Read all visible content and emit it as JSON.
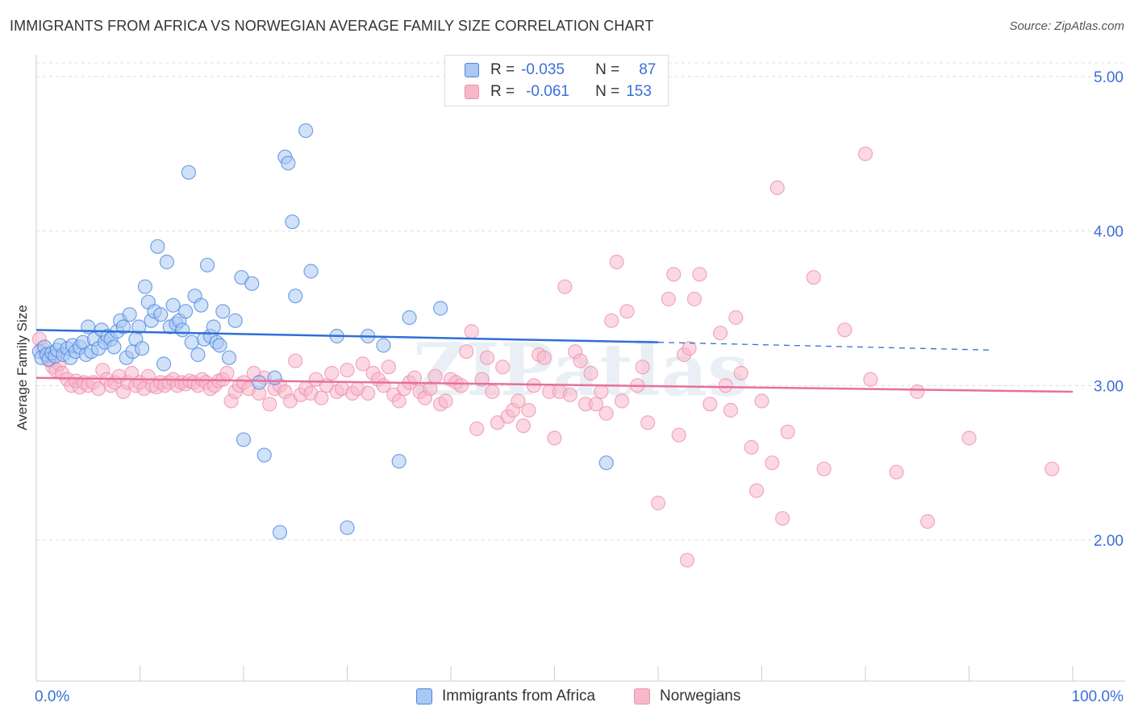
{
  "header": {
    "title": "IMMIGRANTS FROM AFRICA VS NORWEGIAN AVERAGE FAMILY SIZE CORRELATION CHART",
    "source": "Source: ZipAtlas.com"
  },
  "legend": {
    "rows": [
      {
        "r_label": "R =",
        "r_value": "-0.035",
        "n_label": "N =",
        "n_value": "87",
        "color": "#a9c8f3"
      },
      {
        "r_label": "R =",
        "r_value": "-0.061",
        "n_label": "N =",
        "n_value": "153",
        "color": "#f7b8ca"
      }
    ]
  },
  "bottom_legend": [
    {
      "label": "Immigrants from Africa",
      "color": "#a9c8f3"
    },
    {
      "label": "Norwegians",
      "color": "#f7b8ca"
    }
  ],
  "watermark": "ZIPatlas",
  "chart_data": {
    "type": "scatter",
    "ylabel": "Average Family Size",
    "xlabel": "",
    "x_tick_labels": [
      "0.0%",
      "100.0%"
    ],
    "y_tick_labels": [
      "2.00",
      "3.00",
      "4.00",
      "5.00"
    ],
    "xlim": [
      0,
      100
    ],
    "ylim": [
      1.0,
      5.1
    ],
    "grid": true,
    "colors": {
      "blue": "#4a86e0",
      "blue_fill": "#a9c8f3",
      "blue_line": "#2f6fd6",
      "pink": "#ee8fae",
      "pink_fill": "#f7b8ca",
      "pink_line": "#e8709a",
      "tick_label": "#3a6fd8"
    },
    "series": [
      {
        "name": "Immigrants from Africa",
        "trend": {
          "x0": 0,
          "y0": 3.36,
          "x1": 60,
          "y1": 3.28,
          "dash_x1": 92,
          "dash_y1": 3.23
        },
        "points": [
          [
            0.3,
            3.22
          ],
          [
            0.5,
            3.18
          ],
          [
            0.8,
            3.25
          ],
          [
            1.0,
            3.2
          ],
          [
            1.2,
            3.17
          ],
          [
            1.5,
            3.21
          ],
          [
            1.8,
            3.19
          ],
          [
            2.0,
            3.23
          ],
          [
            2.3,
            3.26
          ],
          [
            2.6,
            3.2
          ],
          [
            3.0,
            3.24
          ],
          [
            3.3,
            3.18
          ],
          [
            3.5,
            3.26
          ],
          [
            3.8,
            3.22
          ],
          [
            4.2,
            3.25
          ],
          [
            4.5,
            3.28
          ],
          [
            4.8,
            3.2
          ],
          [
            5.0,
            3.38
          ],
          [
            5.3,
            3.22
          ],
          [
            5.6,
            3.3
          ],
          [
            6.0,
            3.24
          ],
          [
            6.3,
            3.36
          ],
          [
            6.6,
            3.28
          ],
          [
            6.9,
            3.32
          ],
          [
            7.2,
            3.3
          ],
          [
            7.5,
            3.25
          ],
          [
            7.8,
            3.35
          ],
          [
            8.1,
            3.42
          ],
          [
            8.4,
            3.38
          ],
          [
            8.7,
            3.18
          ],
          [
            9.0,
            3.46
          ],
          [
            9.3,
            3.22
          ],
          [
            9.6,
            3.3
          ],
          [
            9.9,
            3.38
          ],
          [
            10.2,
            3.24
          ],
          [
            10.5,
            3.64
          ],
          [
            10.8,
            3.54
          ],
          [
            11.1,
            3.42
          ],
          [
            11.4,
            3.48
          ],
          [
            11.7,
            3.9
          ],
          [
            12.0,
            3.46
          ],
          [
            12.3,
            3.14
          ],
          [
            12.6,
            3.8
          ],
          [
            12.9,
            3.38
          ],
          [
            13.2,
            3.52
          ],
          [
            13.5,
            3.4
          ],
          [
            13.8,
            3.42
          ],
          [
            14.1,
            3.36
          ],
          [
            14.4,
            3.48
          ],
          [
            14.7,
            4.38
          ],
          [
            15.0,
            3.28
          ],
          [
            15.3,
            3.58
          ],
          [
            15.6,
            3.2
          ],
          [
            15.9,
            3.52
          ],
          [
            16.2,
            3.3
          ],
          [
            16.5,
            3.78
          ],
          [
            16.8,
            3.32
          ],
          [
            17.1,
            3.38
          ],
          [
            17.4,
            3.28
          ],
          [
            17.7,
            3.26
          ],
          [
            18.0,
            3.48
          ],
          [
            18.6,
            3.18
          ],
          [
            19.2,
            3.42
          ],
          [
            19.8,
            3.7
          ],
          [
            20.0,
            2.65
          ],
          [
            20.8,
            3.66
          ],
          [
            21.5,
            3.02
          ],
          [
            22.0,
            2.55
          ],
          [
            23.0,
            3.05
          ],
          [
            23.5,
            2.05
          ],
          [
            24.0,
            4.48
          ],
          [
            24.3,
            4.44
          ],
          [
            24.7,
            4.06
          ],
          [
            25.0,
            3.58
          ],
          [
            26.0,
            4.65
          ],
          [
            26.5,
            3.74
          ],
          [
            29.0,
            3.32
          ],
          [
            30.0,
            2.08
          ],
          [
            32.0,
            3.32
          ],
          [
            33.5,
            3.26
          ],
          [
            35.0,
            2.51
          ],
          [
            36.0,
            3.44
          ],
          [
            39.0,
            3.5
          ],
          [
            55.0,
            2.5
          ]
        ]
      },
      {
        "name": "Norwegians",
        "trend": {
          "x0": 0,
          "y0": 3.05,
          "x1": 100,
          "y1": 2.96
        },
        "points": [
          [
            0.3,
            3.3
          ],
          [
            0.6,
            3.24
          ],
          [
            1.0,
            3.2
          ],
          [
            1.3,
            3.16
          ],
          [
            1.6,
            3.12
          ],
          [
            1.9,
            3.1
          ],
          [
            2.2,
            3.14
          ],
          [
            2.5,
            3.08
          ],
          [
            3.0,
            3.04
          ],
          [
            3.4,
            3.0
          ],
          [
            3.8,
            3.03
          ],
          [
            4.2,
            2.99
          ],
          [
            4.6,
            3.02
          ],
          [
            5.0,
            3.0
          ],
          [
            5.5,
            3.02
          ],
          [
            6.0,
            2.98
          ],
          [
            6.4,
            3.1
          ],
          [
            6.8,
            3.04
          ],
          [
            7.2,
            3.0
          ],
          [
            7.6,
            3.02
          ],
          [
            8.0,
            3.06
          ],
          [
            8.4,
            2.96
          ],
          [
            8.8,
            3.02
          ],
          [
            9.2,
            3.08
          ],
          [
            9.6,
            3.0
          ],
          [
            10.0,
            3.02
          ],
          [
            10.4,
            2.98
          ],
          [
            10.8,
            3.06
          ],
          [
            11.2,
            3.0
          ],
          [
            11.6,
            2.99
          ],
          [
            12.0,
            3.02
          ],
          [
            12.4,
            3.0
          ],
          [
            12.8,
            3.02
          ],
          [
            13.2,
            3.04
          ],
          [
            13.6,
            3.0
          ],
          [
            14.0,
            3.02
          ],
          [
            14.4,
            3.01
          ],
          [
            14.8,
            3.03
          ],
          [
            15.2,
            3.02
          ],
          [
            15.6,
            3.0
          ],
          [
            16.0,
            3.04
          ],
          [
            16.4,
            3.02
          ],
          [
            16.8,
            2.98
          ],
          [
            17.2,
            3.0
          ],
          [
            17.6,
            3.03
          ],
          [
            18.0,
            3.04
          ],
          [
            18.4,
            3.08
          ],
          [
            18.8,
            2.9
          ],
          [
            19.2,
            2.96
          ],
          [
            19.6,
            3.0
          ],
          [
            20.0,
            3.02
          ],
          [
            20.5,
            2.98
          ],
          [
            21.0,
            3.08
          ],
          [
            21.5,
            2.95
          ],
          [
            22.0,
            3.05
          ],
          [
            22.5,
            2.88
          ],
          [
            23.0,
            2.98
          ],
          [
            23.5,
            3.0
          ],
          [
            24.0,
            2.96
          ],
          [
            24.5,
            2.9
          ],
          [
            25.0,
            3.16
          ],
          [
            25.5,
            2.94
          ],
          [
            26.0,
            2.98
          ],
          [
            26.5,
            2.95
          ],
          [
            27.0,
            3.04
          ],
          [
            27.5,
            2.92
          ],
          [
            28.0,
            3.0
          ],
          [
            28.5,
            3.08
          ],
          [
            29.0,
            2.96
          ],
          [
            29.5,
            2.98
          ],
          [
            30.0,
            3.1
          ],
          [
            30.5,
            2.95
          ],
          [
            31.0,
            2.98
          ],
          [
            31.5,
            3.14
          ],
          [
            32.0,
            2.95
          ],
          [
            32.5,
            3.08
          ],
          [
            33.0,
            3.04
          ],
          [
            33.5,
            3.0
          ],
          [
            34.0,
            3.12
          ],
          [
            34.5,
            2.94
          ],
          [
            35.0,
            2.9
          ],
          [
            35.5,
            2.98
          ],
          [
            36.0,
            3.02
          ],
          [
            36.5,
            3.05
          ],
          [
            37.0,
            2.96
          ],
          [
            37.5,
            2.92
          ],
          [
            38.0,
            2.98
          ],
          [
            38.5,
            3.06
          ],
          [
            39.0,
            2.88
          ],
          [
            39.5,
            2.9
          ],
          [
            40.0,
            3.04
          ],
          [
            40.5,
            3.02
          ],
          [
            41.0,
            3.0
          ],
          [
            41.5,
            3.22
          ],
          [
            42.0,
            3.35
          ],
          [
            42.5,
            2.72
          ],
          [
            43.0,
            3.04
          ],
          [
            43.5,
            3.18
          ],
          [
            44.0,
            2.96
          ],
          [
            44.5,
            2.76
          ],
          [
            45.0,
            3.12
          ],
          [
            45.5,
            2.8
          ],
          [
            46.0,
            2.84
          ],
          [
            46.5,
            2.9
          ],
          [
            47.0,
            2.74
          ],
          [
            47.5,
            2.84
          ],
          [
            48.0,
            3.0
          ],
          [
            48.5,
            3.2
          ],
          [
            49.0,
            3.18
          ],
          [
            49.5,
            2.96
          ],
          [
            50.0,
            2.66
          ],
          [
            50.5,
            2.96
          ],
          [
            51.0,
            3.64
          ],
          [
            51.5,
            2.94
          ],
          [
            52.0,
            3.22
          ],
          [
            52.5,
            3.16
          ],
          [
            53.0,
            2.88
          ],
          [
            53.5,
            3.08
          ],
          [
            54.0,
            2.88
          ],
          [
            54.5,
            2.96
          ],
          [
            55.0,
            2.82
          ],
          [
            55.5,
            3.42
          ],
          [
            56.0,
            3.8
          ],
          [
            56.5,
            2.9
          ],
          [
            57.0,
            3.48
          ],
          [
            58.0,
            3.0
          ],
          [
            58.5,
            3.12
          ],
          [
            59.0,
            2.76
          ],
          [
            60.0,
            2.24
          ],
          [
            61.0,
            3.56
          ],
          [
            61.5,
            3.72
          ],
          [
            62.0,
            2.68
          ],
          [
            62.5,
            3.2
          ],
          [
            63.0,
            3.24
          ],
          [
            63.5,
            3.56
          ],
          [
            64.0,
            3.72
          ],
          [
            65.0,
            2.88
          ],
          [
            66.0,
            3.34
          ],
          [
            66.5,
            3.0
          ],
          [
            67.0,
            2.84
          ],
          [
            67.5,
            3.44
          ],
          [
            68.0,
            3.08
          ],
          [
            69.0,
            2.6
          ],
          [
            69.5,
            2.32
          ],
          [
            70.0,
            2.9
          ],
          [
            71.0,
            2.5
          ],
          [
            72.0,
            2.14
          ],
          [
            72.5,
            2.7
          ],
          [
            75.0,
            3.7
          ],
          [
            76.0,
            2.46
          ],
          [
            78.0,
            3.36
          ],
          [
            80.0,
            4.5
          ],
          [
            80.5,
            3.04
          ],
          [
            83.0,
            2.44
          ],
          [
            85.0,
            2.96
          ],
          [
            86.0,
            2.12
          ],
          [
            90.0,
            2.66
          ],
          [
            98.0,
            2.46
          ],
          [
            62.8,
            1.87
          ],
          [
            71.5,
            4.28
          ]
        ]
      }
    ]
  }
}
